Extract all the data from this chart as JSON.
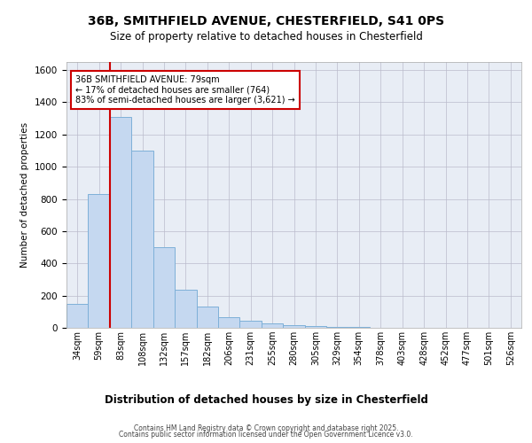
{
  "title_line1": "36B, SMITHFIELD AVENUE, CHESTERFIELD, S41 0PS",
  "title_line2": "Size of property relative to detached houses in Chesterfield",
  "xlabel": "Distribution of detached houses by size in Chesterfield",
  "ylabel": "Number of detached properties",
  "categories": [
    "34sqm",
    "59sqm",
    "83sqm",
    "108sqm",
    "132sqm",
    "157sqm",
    "182sqm",
    "206sqm",
    "231sqm",
    "255sqm",
    "280sqm",
    "305sqm",
    "329sqm",
    "354sqm",
    "378sqm",
    "403sqm",
    "428sqm",
    "452sqm",
    "477sqm",
    "501sqm",
    "526sqm"
  ],
  "values": [
    150,
    830,
    1310,
    1100,
    500,
    235,
    130,
    65,
    42,
    25,
    15,
    10,
    5,
    3,
    2,
    1,
    1,
    1,
    0,
    0,
    0
  ],
  "bar_color": "#c5d8f0",
  "bar_edge_color": "#7eb0d8",
  "grid_color": "#bbbbcc",
  "bg_color": "#e8edf5",
  "annotation_box_text": "36B SMITHFIELD AVENUE: 79sqm\n← 17% of detached houses are smaller (764)\n83% of semi-detached houses are larger (3,621) →",
  "annotation_box_color": "#cc0000",
  "ylim": [
    0,
    1650
  ],
  "yticks": [
    0,
    200,
    400,
    600,
    800,
    1000,
    1200,
    1400,
    1600
  ],
  "footer_line1": "Contains HM Land Registry data © Crown copyright and database right 2025.",
  "footer_line2": "Contains public sector information licensed under the Open Government Licence v3.0."
}
